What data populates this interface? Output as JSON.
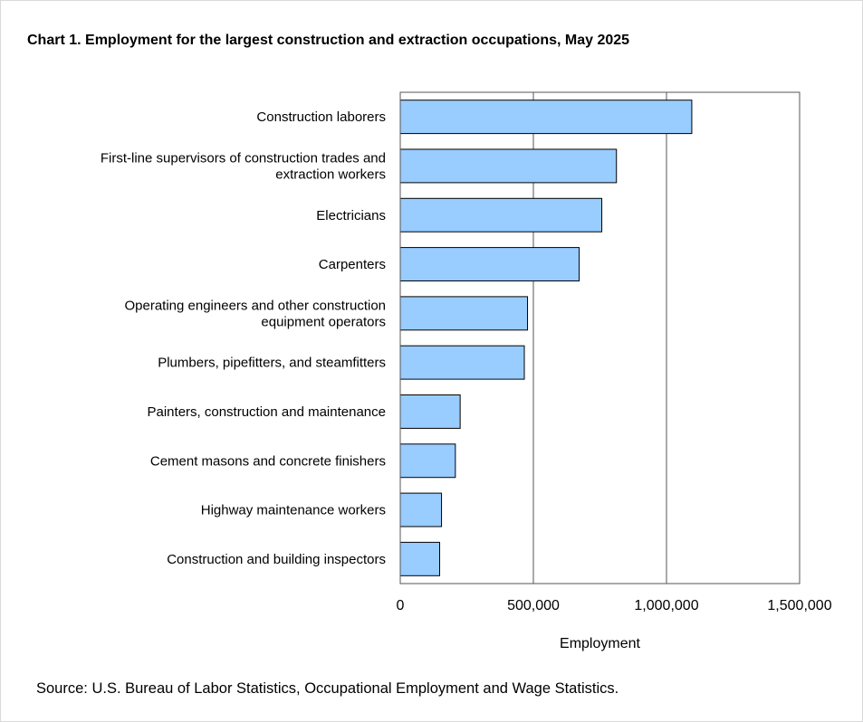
{
  "chart_data": {
    "type": "bar",
    "orientation": "horizontal",
    "title": "Chart 1. Employment for the largest construction and extraction occupations, May 2025",
    "xlabel": "Employment",
    "ylabel": "",
    "xlim": [
      0,
      1500000
    ],
    "xticks": [
      0,
      500000,
      1000000,
      1500000
    ],
    "xtick_labels": [
      "0",
      "500,000",
      "1,000,000",
      "1,500,000"
    ],
    "grid": "vertical",
    "bar_color": "#99ccff",
    "categories": [
      [
        "Construction laborers"
      ],
      [
        "First-line supervisors of construction trades and",
        "extraction workers"
      ],
      [
        "Electricians"
      ],
      [
        "Carpenters"
      ],
      [
        "Operating engineers and other construction",
        "equipment operators"
      ],
      [
        "Plumbers, pipefitters, and steamfitters"
      ],
      [
        "Painters, construction and maintenance"
      ],
      [
        "Cement masons and concrete finishers"
      ],
      [
        "Highway maintenance workers"
      ],
      [
        "Construction and building inspectors"
      ]
    ],
    "values": [
      1095000,
      812000,
      757000,
      672000,
      478000,
      466000,
      225000,
      207000,
      155000,
      148000
    ]
  },
  "source": "Source: U.S. Bureau of Labor Statistics, Occupational Employment and Wage Statistics."
}
